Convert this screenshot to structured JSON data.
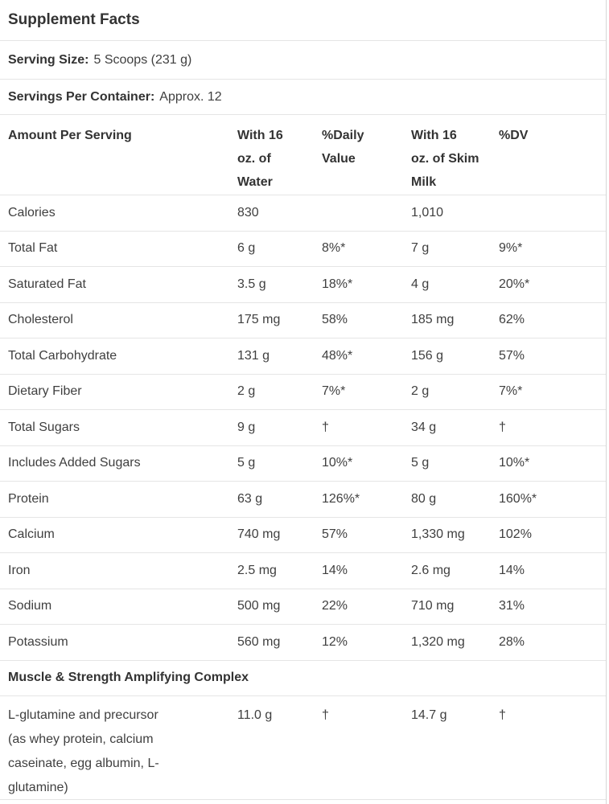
{
  "panel": {
    "title": "Supplement Facts",
    "serving_size_label": "Serving Size:",
    "serving_size_value": "5 Scoops (231 g)",
    "servings_label": "Servings Per Container:",
    "servings_value": "Approx. 12"
  },
  "table": {
    "headers": {
      "amount": "Amount Per Serving",
      "water": "With 16\noz. of\nWater",
      "water_dv": "%Daily\nValue",
      "milk": "With 16\noz. of Skim\nMilk",
      "milk_dv": "%DV"
    },
    "rows": [
      {
        "label": "Calories",
        "water": "830",
        "water_dv": "",
        "milk": "1,010",
        "milk_dv": ""
      },
      {
        "label": "Total Fat",
        "water": "6 g",
        "water_dv": "8%*",
        "milk": "7 g",
        "milk_dv": "9%*"
      },
      {
        "label": "Saturated Fat",
        "water": "3.5 g",
        "water_dv": "18%*",
        "milk": "4 g",
        "milk_dv": "20%*"
      },
      {
        "label": "Cholesterol",
        "water": "175 mg",
        "water_dv": "58%",
        "milk": "185 mg",
        "milk_dv": "62%"
      },
      {
        "label": "Total Carbohydrate",
        "water": "131 g",
        "water_dv": "48%*",
        "milk": "156 g",
        "milk_dv": "57%"
      },
      {
        "label": "Dietary Fiber",
        "water": "2 g",
        "water_dv": "7%*",
        "milk": "2 g",
        "milk_dv": "7%*"
      },
      {
        "label": "Total Sugars",
        "water": "9 g",
        "water_dv": "†",
        "milk": "34 g",
        "milk_dv": "†"
      },
      {
        "label": "Includes Added Sugars",
        "water": "5 g",
        "water_dv": "10%*",
        "milk": "5 g",
        "milk_dv": "10%*"
      },
      {
        "label": "Protein",
        "water": "63 g",
        "water_dv": "126%*",
        "milk": "80 g",
        "milk_dv": "160%*"
      },
      {
        "label": "Calcium",
        "water": "740 mg",
        "water_dv": "57%",
        "milk": "1,330 mg",
        "milk_dv": "102%"
      },
      {
        "label": "Iron",
        "water": "2.5 mg",
        "water_dv": "14%",
        "milk": "2.6 mg",
        "milk_dv": "14%"
      },
      {
        "label": "Sodium",
        "water": "500 mg",
        "water_dv": "22%",
        "milk": "710 mg",
        "milk_dv": "31%"
      },
      {
        "label": "Potassium",
        "water": "560 mg",
        "water_dv": "12%",
        "milk": "1,320 mg",
        "milk_dv": "28%"
      }
    ],
    "section_title": "Muscle & Strength Amplifying Complex",
    "section_rows": [
      {
        "label": "L-glutamine and precursor\n(as whey protein, calcium\ncaseinate, egg albumin, L-\nglutamine)",
        "water": "11.0 g",
        "water_dv": "†",
        "milk": "14.7 g",
        "milk_dv": "†"
      }
    ]
  },
  "colors": {
    "text": "#3f3f3f",
    "divider": "#e5e5e5",
    "edge": "#d6d6d6"
  }
}
